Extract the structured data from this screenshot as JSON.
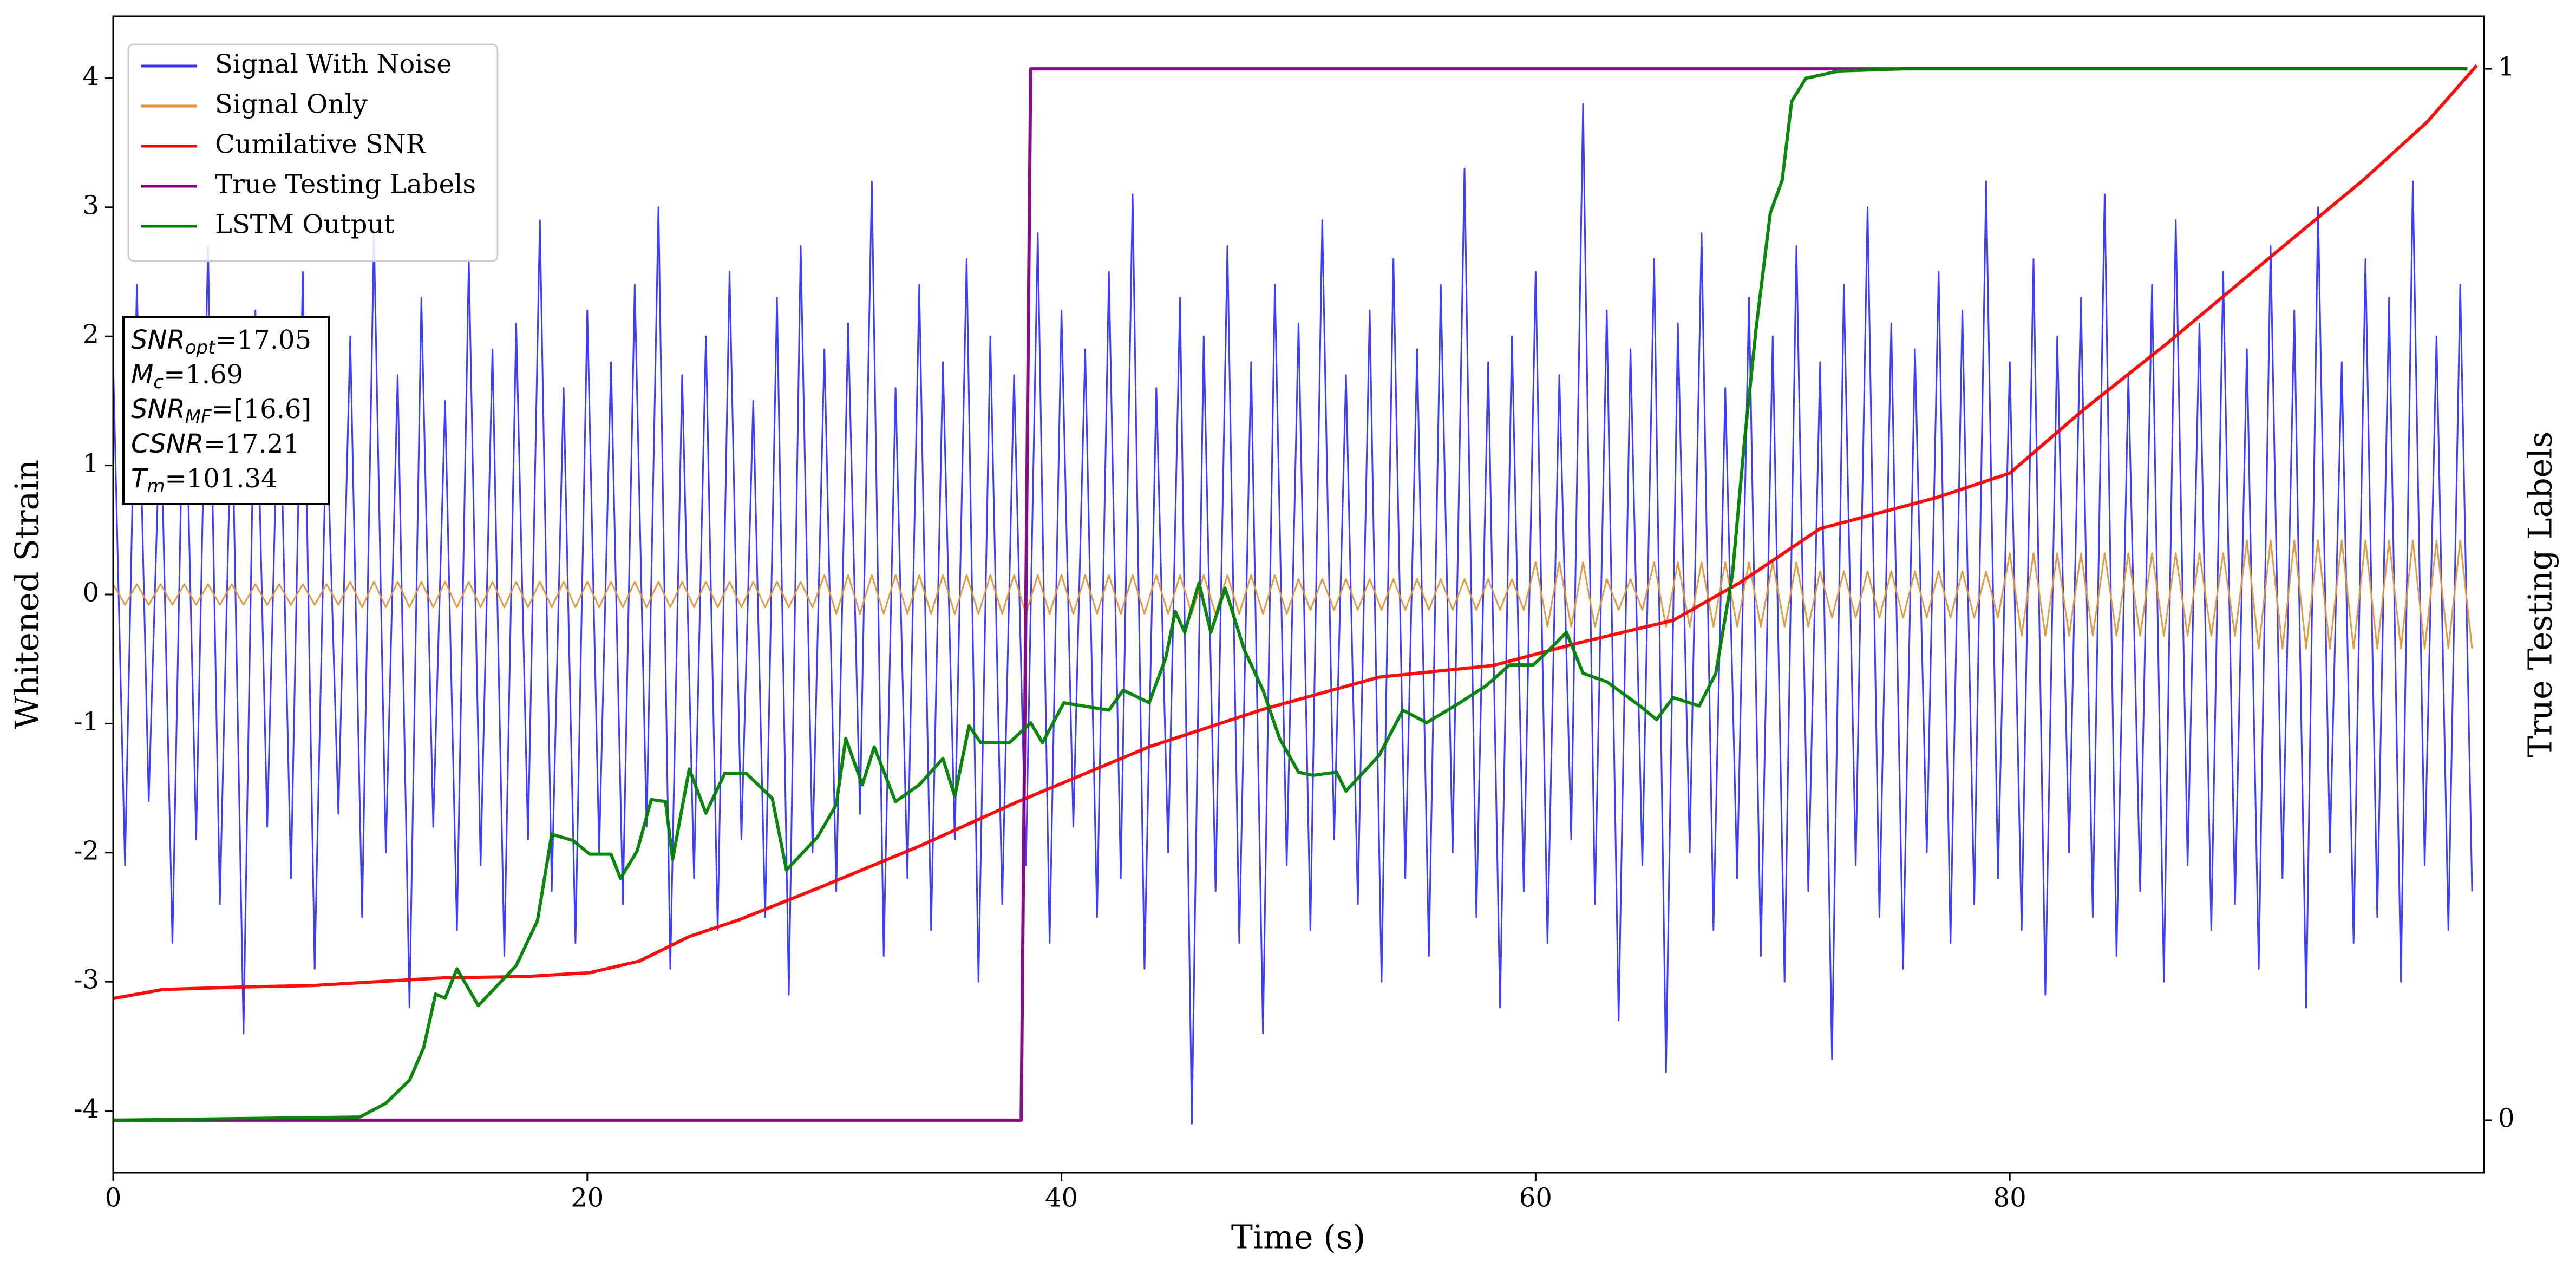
{
  "chart_data": {
    "type": "line",
    "xlabel": "Time (s)",
    "ylabel": "Whitened Strain",
    "y2label": "True Testing Labels",
    "xlim": [
      0,
      100
    ],
    "xticks": [
      0,
      20,
      40,
      60,
      80
    ],
    "ylim": [
      -4.48,
      4.48
    ],
    "yticks": [
      -4,
      -3,
      -2,
      -1,
      0,
      1,
      2,
      3,
      4
    ],
    "y2lim": [
      -0.05,
      1.05
    ],
    "y2ticks": [
      0,
      1
    ],
    "grid": false,
    "legend": "upper left",
    "x": [
      0,
      0.5,
      1,
      1.5,
      2,
      2.5,
      3,
      3.5,
      4,
      4.5,
      5,
      5.5,
      6,
      6.5,
      7,
      7.5,
      8,
      8.5,
      9,
      9.5,
      10,
      10.5,
      11,
      11.5,
      12,
      12.5,
      13,
      13.5,
      14,
      14.5,
      15,
      15.5,
      16,
      16.5,
      17,
      17.5,
      18,
      18.5,
      19,
      19.5,
      20,
      20.5,
      21,
      21.5,
      22,
      22.5,
      23,
      23.5,
      24,
      24.5,
      25,
      25.5,
      26,
      26.5,
      27,
      27.5,
      28,
      28.5,
      29,
      29.5,
      30,
      30.5,
      31,
      31.5,
      32,
      32.5,
      33,
      33.5,
      34,
      34.5,
      35,
      35.5,
      36,
      36.5,
      37,
      37.5,
      38,
      38.5,
      39,
      39.5,
      40,
      40.5,
      41,
      41.5,
      42,
      42.5,
      43,
      43.5,
      44,
      44.5,
      45,
      45.5,
      46,
      46.5,
      47,
      47.5,
      48,
      48.5,
      49,
      49.5,
      50,
      50.5,
      51,
      51.5,
      52,
      52.5,
      53,
      53.5,
      54,
      54.5,
      55,
      55.5,
      56,
      56.5,
      57,
      57.5,
      58,
      58.5,
      59,
      59.5,
      60,
      60.5,
      61,
      61.5,
      62,
      62.5,
      63,
      63.5,
      64,
      64.5,
      65,
      65.5,
      66,
      66.5,
      67,
      67.5,
      68,
      68.5,
      69,
      69.5,
      70,
      70.5,
      71,
      71.5,
      72,
      72.5,
      73,
      73.5,
      74,
      74.5,
      75,
      75.5,
      76,
      76.5,
      77,
      77.5,
      78,
      78.5,
      79,
      79.5,
      80,
      80.5,
      81,
      81.5,
      82,
      82.5,
      83,
      83.5,
      84,
      84.5,
      85,
      85.5,
      86,
      86.5,
      87,
      87.5,
      88,
      88.5,
      89,
      89.5,
      90,
      90.5,
      91,
      91.5,
      92,
      92.5,
      93,
      93.5,
      94,
      94.5,
      95,
      95.5,
      96,
      96.5,
      97,
      97.5,
      98,
      98.5,
      99,
      99.5
    ],
    "series": [
      {
        "name": "Signal With Noise",
        "color": "#3333ff",
        "width": 3,
        "values": [
          1.8,
          -2.1,
          2.4,
          -1.6,
          1.5,
          -2.7,
          2.1,
          -1.9,
          2.7,
          -2.4,
          1.6,
          -3.4,
          2.2,
          -1.8,
          1.9,
          -2.2,
          2.5,
          -2.9,
          1.4,
          -1.7,
          2.0,
          -2.5,
          2.8,
          -2.0,
          1.7,
          -3.2,
          2.3,
          -1.8,
          1.5,
          -2.6,
          2.6,
          -2.1,
          1.9,
          -2.8,
          2.1,
          -1.9,
          2.9,
          -2.3,
          1.6,
          -2.7,
          2.2,
          -2.0,
          1.8,
          -2.4,
          2.4,
          -1.8,
          3.0,
          -2.9,
          1.7,
          -2.2,
          2.0,
          -2.6,
          2.5,
          -1.9,
          1.5,
          -2.5,
          2.3,
          -3.1,
          2.7,
          -2.0,
          1.9,
          -2.3,
          2.1,
          -1.7,
          3.2,
          -2.8,
          1.6,
          -2.2,
          2.4,
          -2.6,
          1.8,
          -1.9,
          2.6,
          -3.0,
          2.0,
          -2.4,
          1.7,
          -2.1,
          2.8,
          -2.7,
          2.2,
          -1.8,
          1.9,
          -2.5,
          2.5,
          -2.2,
          3.1,
          -2.9,
          1.6,
          -2.0,
          2.3,
          -4.1,
          2.0,
          -2.3,
          2.7,
          -2.7,
          1.8,
          -3.4,
          2.4,
          -2.1,
          2.1,
          -2.6,
          2.9,
          -1.9,
          1.7,
          -2.4,
          2.2,
          -3.0,
          2.6,
          -2.2,
          1.9,
          -2.8,
          2.4,
          -2.0,
          3.3,
          -2.5,
          1.8,
          -3.2,
          2.0,
          -2.3,
          2.5,
          -2.7,
          1.7,
          -1.9,
          3.8,
          -2.4,
          2.2,
          -3.3,
          1.9,
          -2.1,
          2.6,
          -3.7,
          2.1,
          -2.0,
          2.8,
          -2.6,
          1.6,
          -2.2,
          2.3,
          -2.8,
          2.0,
          -3.0,
          2.7,
          -2.3,
          1.8,
          -3.6,
          2.4,
          -2.1,
          3.0,
          -2.5,
          2.1,
          -2.9,
          1.9,
          -2.0,
          2.5,
          -2.7,
          2.2,
          -2.4,
          3.2,
          -2.2,
          1.8,
          -2.6,
          2.6,
          -3.1,
          2.0,
          -2.0,
          2.3,
          -2.5,
          3.1,
          -2.8,
          1.7,
          -2.3,
          2.4,
          -3.0,
          2.9,
          -2.1,
          2.1,
          -2.6,
          2.5,
          -2.4,
          1.9,
          -2.9,
          2.7,
          -2.2,
          2.2,
          -3.2,
          3.0,
          -2.0,
          1.8,
          -2.7,
          2.6,
          -2.5,
          2.3,
          -3.0,
          3.2,
          -2.1,
          2.0,
          -2.6,
          2.4,
          -2.3
        ]
      },
      {
        "name": "Signal Only",
        "color": "#e0953a",
        "width": 3,
        "values": [
          0.08,
          -0.08,
          0.08,
          -0.08,
          0.08,
          -0.08,
          0.08,
          -0.08,
          0.08,
          -0.08,
          0.08,
          -0.08,
          0.08,
          -0.08,
          0.08,
          -0.08,
          0.08,
          -0.08,
          0.08,
          -0.08,
          0.1,
          -0.1,
          0.1,
          -0.1,
          0.1,
          -0.1,
          0.1,
          -0.1,
          0.1,
          -0.1,
          0.1,
          -0.1,
          0.1,
          -0.1,
          0.1,
          -0.1,
          0.1,
          -0.1,
          0.1,
          -0.1,
          0.1,
          -0.1,
          0.1,
          -0.1,
          0.1,
          -0.1,
          0.1,
          -0.1,
          0.1,
          -0.1,
          0.1,
          -0.1,
          0.1,
          -0.1,
          0.1,
          -0.1,
          0.1,
          -0.1,
          0.1,
          -0.1,
          0.15,
          -0.15,
          0.15,
          -0.15,
          0.15,
          -0.15,
          0.15,
          -0.15,
          0.15,
          -0.15,
          0.15,
          -0.15,
          0.15,
          -0.15,
          0.15,
          -0.15,
          0.15,
          -0.15,
          0.15,
          -0.15,
          0.15,
          -0.15,
          0.15,
          -0.15,
          0.15,
          -0.15,
          0.15,
          -0.15,
          0.15,
          -0.15,
          0.15,
          -0.15,
          0.15,
          -0.15,
          0.15,
          -0.15,
          0.15,
          -0.15,
          0.15,
          -0.15,
          0.12,
          -0.12,
          0.12,
          -0.12,
          0.12,
          -0.12,
          0.12,
          -0.12,
          0.12,
          -0.12,
          0.12,
          -0.12,
          0.12,
          -0.12,
          0.12,
          -0.12,
          0.12,
          -0.12,
          0.12,
          -0.12,
          0.25,
          -0.25,
          0.25,
          -0.25,
          0.25,
          -0.25,
          0.12,
          -0.12,
          0.12,
          -0.12,
          0.25,
          -0.25,
          0.25,
          -0.25,
          0.25,
          -0.25,
          0.25,
          -0.25,
          0.25,
          -0.25,
          0.25,
          -0.25,
          0.25,
          -0.25,
          0.18,
          -0.18,
          0.18,
          -0.18,
          0.18,
          -0.18,
          0.18,
          -0.18,
          0.18,
          -0.18,
          0.18,
          -0.18,
          0.18,
          -0.18,
          0.18,
          -0.18,
          0.32,
          -0.32,
          0.32,
          -0.32,
          0.32,
          -0.32,
          0.32,
          -0.32,
          0.32,
          -0.32,
          0.32,
          -0.32,
          0.32,
          -0.32,
          0.32,
          -0.32,
          0.32,
          -0.32,
          0.32,
          -0.32,
          0.42,
          -0.42,
          0.42,
          -0.42,
          0.42,
          -0.42,
          0.42,
          -0.42,
          0.42,
          -0.42,
          0.42,
          -0.42,
          0.42,
          -0.42,
          0.42,
          -0.42,
          0.42,
          -0.42,
          0.42,
          -0.42
        ]
      },
      {
        "name": "Cumilative SNR",
        "color": "#ff0000",
        "width": 6,
        "x": [
          0,
          2.1,
          5.6,
          8.4,
          11.1,
          13.9,
          17.4,
          20.1,
          22.2,
          24.3,
          26.4,
          29.8,
          34.0,
          38.1,
          43.7,
          48.5,
          53.4,
          58.2,
          61.7,
          65.8,
          68.6,
          72.0,
          76.9,
          80.0,
          83.1,
          86.6,
          90.7,
          94.9,
          97.6,
          99.7
        ],
        "values": [
          -3.13,
          -3.06,
          -3.04,
          -3.03,
          -3.0,
          -2.97,
          -2.96,
          -2.93,
          -2.84,
          -2.65,
          -2.52,
          -2.27,
          -1.95,
          -1.61,
          -1.18,
          -0.89,
          -0.64,
          -0.55,
          -0.38,
          -0.2,
          0.09,
          0.51,
          0.75,
          0.94,
          1.43,
          1.94,
          2.57,
          3.21,
          3.66,
          4.1
        ]
      },
      {
        "name": "True Testing Labels",
        "color": "#800080",
        "width": 6,
        "axis": "y2",
        "x": [
          0,
          38.3,
          38.7,
          99.3
        ],
        "values": [
          0,
          0,
          1,
          1
        ]
      },
      {
        "name": "LSTM Output",
        "color": "#008000",
        "width": 6,
        "axis": "y2",
        "x": [
          0,
          10.4,
          11.5,
          12.5,
          13.1,
          13.6,
          14.0,
          14.5,
          15.4,
          17.0,
          17.9,
          18.5,
          19.4,
          20.1,
          21.0,
          21.4,
          22.1,
          22.7,
          23.3,
          23.6,
          24.3,
          25.0,
          25.8,
          26.7,
          27.8,
          28.4,
          29.7,
          30.5,
          30.9,
          31.6,
          32.1,
          33.0,
          34.0,
          35.0,
          35.5,
          36.1,
          36.6,
          37.8,
          38.7,
          39.2,
          40.1,
          40.9,
          42.0,
          42.6,
          43.7,
          44.4,
          44.8,
          45.2,
          45.8,
          46.3,
          46.9,
          47.7,
          48.5,
          49.2,
          50.0,
          50.6,
          51.6,
          52.0,
          53.4,
          54.4,
          55.4,
          56.8,
          57.9,
          58.9,
          59.9,
          60.6,
          61.3,
          62.0,
          63.0,
          64.4,
          65.1,
          65.8,
          66.9,
          67.6,
          68.3,
          68.8,
          69.3,
          69.9,
          70.4,
          70.8,
          71.4,
          72.8,
          75.5,
          99.3
        ],
        "values": [
          0,
          0.003,
          0.016,
          0.038,
          0.069,
          0.12,
          0.116,
          0.144,
          0.109,
          0.147,
          0.19,
          0.272,
          0.266,
          0.253,
          0.253,
          0.23,
          0.256,
          0.305,
          0.303,
          0.248,
          0.334,
          0.292,
          0.33,
          0.33,
          0.306,
          0.238,
          0.269,
          0.3,
          0.363,
          0.319,
          0.355,
          0.303,
          0.319,
          0.344,
          0.308,
          0.375,
          0.359,
          0.359,
          0.378,
          0.359,
          0.397,
          0.394,
          0.39,
          0.409,
          0.397,
          0.44,
          0.484,
          0.464,
          0.511,
          0.464,
          0.506,
          0.448,
          0.409,
          0.363,
          0.331,
          0.328,
          0.331,
          0.313,
          0.347,
          0.39,
          0.378,
          0.397,
          0.413,
          0.433,
          0.433,
          0.448,
          0.464,
          0.425,
          0.417,
          0.394,
          0.381,
          0.402,
          0.394,
          0.425,
          0.519,
          0.644,
          0.753,
          0.863,
          0.894,
          0.969,
          0.991,
          0.998,
          1.0,
          1.0
        ]
      }
    ],
    "annotation": [
      {
        "name": "SNR",
        "sub": "opt",
        "text": "=17.05"
      },
      {
        "name": "M",
        "sub": "c",
        "text": "=1.69"
      },
      {
        "name": "SNR",
        "sub": "MF",
        "text": "=[16.6]"
      },
      {
        "name": "CSNR",
        "text": "=17.21"
      },
      {
        "name": "T",
        "sub": "m",
        "text": "=101.34"
      }
    ]
  }
}
